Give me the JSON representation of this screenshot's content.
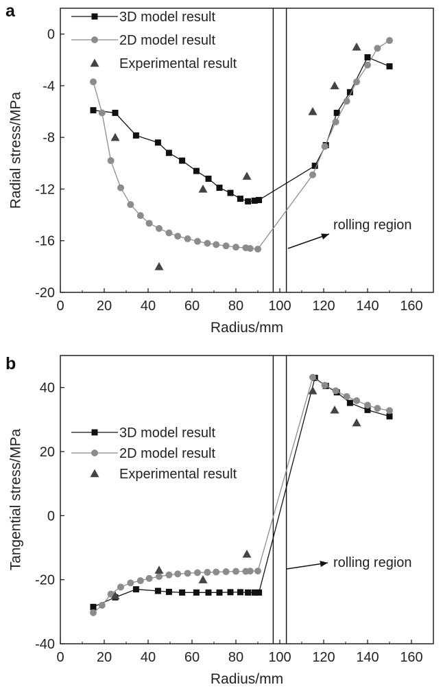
{
  "chart_data": [
    {
      "type": "line",
      "panel_label": "a",
      "xlabel": "Radius/mm",
      "ylabel": "Radial stress/MPa",
      "xlim": [
        0,
        170
      ],
      "ylim": [
        -20,
        2
      ],
      "x_ticks": [
        0,
        20,
        40,
        60,
        80,
        100,
        120,
        140,
        160
      ],
      "y_ticks": [
        0,
        -4,
        -8,
        -12,
        -16,
        -20
      ],
      "x_tick_labels": [
        "0",
        "20",
        "40",
        "60",
        "80",
        "100",
        "120",
        "140",
        "160"
      ],
      "y_tick_labels": [
        "0",
        "-4",
        "-8",
        "-12",
        "-16",
        "-20"
      ],
      "region_lines_x": [
        97,
        103
      ],
      "annotation": "rolling region",
      "legend_position": "top-left",
      "series": [
        {
          "name": "3D model result",
          "marker": "square",
          "color": "#111111",
          "points": [
            [
              15,
              -5.9
            ],
            [
              25,
              -6.1
            ],
            [
              34.5,
              -7.85
            ],
            [
              44.5,
              -8.4
            ],
            [
              49.5,
              -9.2
            ],
            [
              55.5,
              -9.8
            ],
            [
              62,
              -10.6
            ],
            [
              67.5,
              -11.2
            ],
            [
              72.5,
              -11.9
            ],
            [
              77.5,
              -12.3
            ],
            [
              82,
              -12.75
            ],
            [
              85.5,
              -12.95
            ],
            [
              88.5,
              -12.9
            ],
            [
              90.5,
              -12.85
            ],
            [
              116,
              -10.2
            ],
            [
              121,
              -8.6
            ],
            [
              126,
              -6.1
            ],
            [
              132,
              -4.5
            ],
            [
              140,
              -1.8
            ],
            [
              150,
              -2.5
            ]
          ]
        },
        {
          "name": "2D model result",
          "marker": "circle",
          "color": "#8c8c8c",
          "points": [
            [
              15,
              -3.7
            ],
            [
              19,
              -6.1
            ],
            [
              23,
              -9.8
            ],
            [
              27.5,
              -11.9
            ],
            [
              32,
              -13.2
            ],
            [
              36.5,
              -14.05
            ],
            [
              40.5,
              -14.65
            ],
            [
              45,
              -15.05
            ],
            [
              49.5,
              -15.4
            ],
            [
              53.5,
              -15.65
            ],
            [
              58,
              -15.85
            ],
            [
              62.5,
              -16.05
            ],
            [
              67,
              -16.2
            ],
            [
              71,
              -16.3
            ],
            [
              75.5,
              -16.4
            ],
            [
              80,
              -16.5
            ],
            [
              84.5,
              -16.55
            ],
            [
              86.5,
              -16.6
            ],
            [
              90,
              -16.65
            ],
            [
              115,
              -10.9
            ],
            [
              120.5,
              -8.7
            ],
            [
              125.5,
              -6.8
            ],
            [
              130.5,
              -5.2
            ],
            [
              135,
              -3.7
            ],
            [
              140,
              -2.4
            ],
            [
              144.5,
              -1.1
            ],
            [
              150,
              -0.5
            ]
          ]
        },
        {
          "name": "Experimental result",
          "marker": "triangle",
          "color": "#444444",
          "points": [
            [
              25,
              -8
            ],
            [
              45,
              -18
            ],
            [
              65,
              -12
            ],
            [
              85,
              -11
            ],
            [
              115,
              -6
            ],
            [
              125,
              -4
            ],
            [
              135,
              -1
            ]
          ]
        }
      ]
    },
    {
      "type": "line",
      "panel_label": "b",
      "xlabel": "Radius/mm",
      "ylabel": "Tangential stress/MPa",
      "xlim": [
        0,
        170
      ],
      "ylim": [
        -40,
        50
      ],
      "x_ticks": [
        0,
        20,
        40,
        60,
        80,
        100,
        120,
        140,
        160
      ],
      "y_ticks": [
        40,
        20,
        0,
        -20,
        -40
      ],
      "x_tick_labels": [
        "0",
        "20",
        "40",
        "60",
        "80",
        "100",
        "120",
        "140",
        "160"
      ],
      "y_tick_labels": [
        "40",
        "20",
        "0",
        "-20",
        "-40"
      ],
      "region_lines_x": [
        97,
        103
      ],
      "annotation": "rolling region",
      "legend_position": "middle-left",
      "series": [
        {
          "name": "3D model result",
          "marker": "square",
          "color": "#111111",
          "points": [
            [
              15,
              -28.5
            ],
            [
              25,
              -25.5
            ],
            [
              34.5,
              -23
            ],
            [
              44.5,
              -23.5
            ],
            [
              49.5,
              -23.8
            ],
            [
              55.5,
              -24
            ],
            [
              62,
              -24
            ],
            [
              67.5,
              -24
            ],
            [
              72.5,
              -24
            ],
            [
              77.5,
              -23.9
            ],
            [
              82,
              -23.9
            ],
            [
              85.5,
              -24
            ],
            [
              88.5,
              -24
            ],
            [
              90.5,
              -24
            ],
            [
              116,
              43
            ],
            [
              121,
              40.5
            ],
            [
              126,
              38.5
            ],
            [
              132,
              35.2
            ],
            [
              140,
              33
            ],
            [
              150,
              31
            ]
          ]
        },
        {
          "name": "2D model result",
          "marker": "circle",
          "color": "#8c8c8c",
          "points": [
            [
              15,
              -30.3
            ],
            [
              19,
              -28
            ],
            [
              23,
              -24.5
            ],
            [
              27.5,
              -22.3
            ],
            [
              32,
              -21
            ],
            [
              36.5,
              -20.3
            ],
            [
              40.5,
              -19.6
            ],
            [
              45,
              -19
            ],
            [
              49.5,
              -18.5
            ],
            [
              53.5,
              -18.2
            ],
            [
              58,
              -18
            ],
            [
              62.5,
              -17.8
            ],
            [
              67,
              -17.7
            ],
            [
              71,
              -17.6
            ],
            [
              75.5,
              -17.5
            ],
            [
              80,
              -17.4
            ],
            [
              84.5,
              -17.4
            ],
            [
              86.5,
              -17.3
            ],
            [
              90,
              -17.3
            ],
            [
              115,
              43.2
            ],
            [
              120.5,
              40.7
            ],
            [
              125.5,
              39
            ],
            [
              130.5,
              37.2
            ],
            [
              135,
              35.9
            ],
            [
              140,
              34.5
            ],
            [
              144.5,
              33.5
            ],
            [
              150,
              32.8
            ]
          ]
        },
        {
          "name": "Experimental result",
          "marker": "triangle",
          "color": "#444444",
          "points": [
            [
              25,
              -25
            ],
            [
              45,
              -17
            ],
            [
              65,
              -20
            ],
            [
              85,
              -12
            ],
            [
              115,
              39
            ],
            [
              125,
              33
            ],
            [
              135,
              29
            ]
          ]
        }
      ]
    }
  ]
}
